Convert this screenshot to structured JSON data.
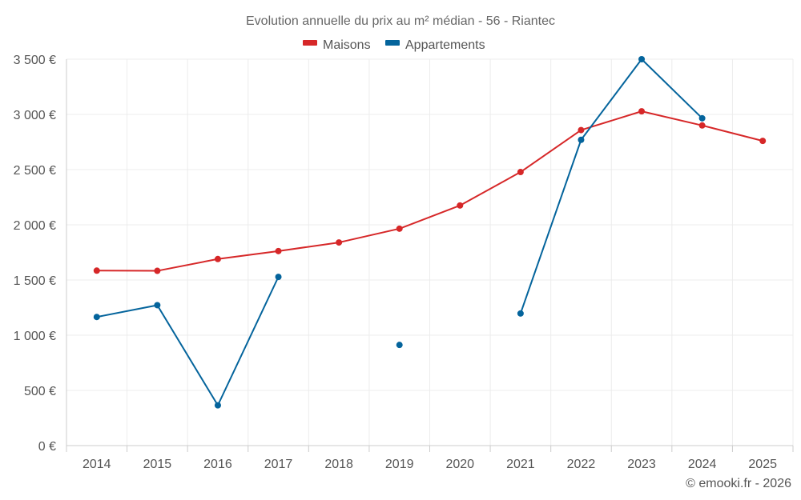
{
  "chart_data": {
    "type": "line",
    "title": "Evolution annuelle du prix au m² médian - 56 - Riantec",
    "categories": [
      "2014",
      "2015",
      "2016",
      "2017",
      "2018",
      "2019",
      "2020",
      "2021",
      "2022",
      "2023",
      "2024",
      "2025"
    ],
    "ylim": [
      0,
      3500
    ],
    "yticks": [
      0,
      500,
      1000,
      1500,
      2000,
      2500,
      3000,
      3500
    ],
    "ytick_labels": [
      "0 €",
      "500 €",
      "1 000 €",
      "1 500 €",
      "2 000 €",
      "2 500 €",
      "3 000 €",
      "3 500 €"
    ],
    "grid": true,
    "legend_position": "top-center",
    "series": [
      {
        "name": "Maisons",
        "color": "#d62728",
        "values": [
          1585,
          1583,
          1690,
          1762,
          1840,
          1965,
          2175,
          2478,
          2858,
          3028,
          2900,
          2760
        ]
      },
      {
        "name": "Appartements",
        "color": "#04649c",
        "values": [
          1165,
          1272,
          365,
          1528,
          null,
          912,
          null,
          1197,
          2770,
          3500,
          2965,
          null
        ]
      }
    ],
    "credit": "© emooki.fr - 2026"
  }
}
